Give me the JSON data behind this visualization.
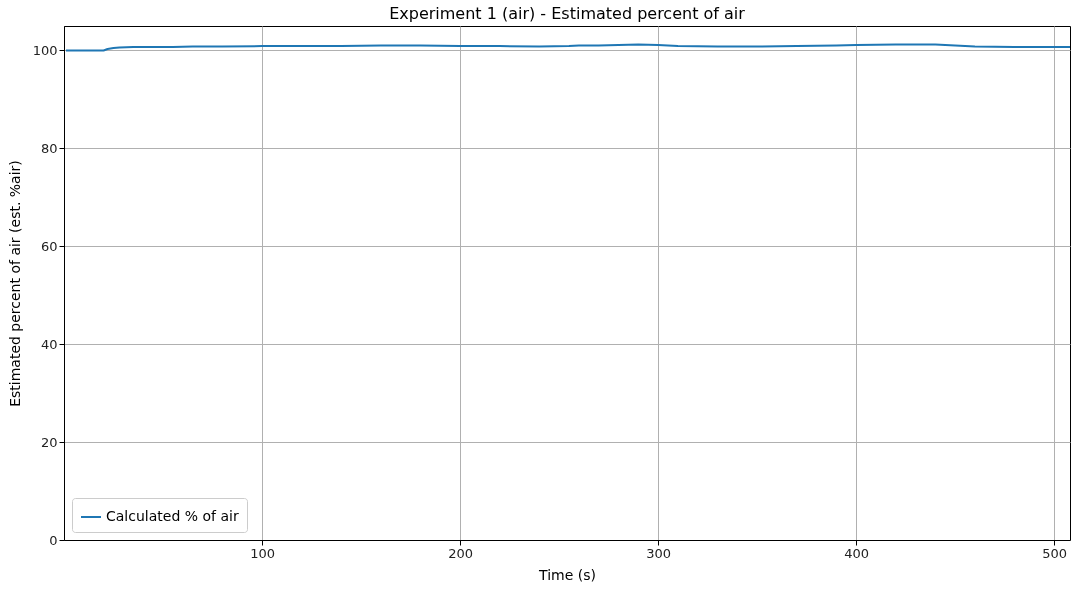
{
  "chart_data": {
    "type": "line",
    "title": "Experiment 1 (air) - Estimated percent of air",
    "xlabel": "Time (s)",
    "ylabel": "Estimated percent of air (est. %air)",
    "x": [
      1,
      5,
      10,
      15,
      20,
      22,
      25,
      28,
      35,
      45,
      55,
      65,
      80,
      100,
      120,
      140,
      160,
      180,
      200,
      220,
      240,
      255,
      260,
      270,
      280,
      290,
      300,
      310,
      330,
      350,
      370,
      390,
      400,
      420,
      440,
      450,
      460,
      480,
      500,
      508
    ],
    "series": [
      {
        "name": "Calculated % of air",
        "color": "#1f77b4",
        "values": [
          100,
          100,
          100,
          100,
          100,
          100.3,
          100.5,
          100.6,
          100.7,
          100.7,
          100.7,
          100.8,
          100.8,
          100.9,
          100.9,
          100.9,
          101,
          101,
          100.9,
          100.9,
          100.8,
          100.9,
          101,
          101,
          101.1,
          101.2,
          101.1,
          100.9,
          100.8,
          100.8,
          100.9,
          101,
          101.1,
          101.2,
          101.2,
          101,
          100.8,
          100.7,
          100.7,
          100.7
        ]
      }
    ],
    "xlim": [
      0,
      508
    ],
    "ylim": [
      0,
      105
    ],
    "xticks": [
      100,
      200,
      300,
      400,
      500
    ],
    "yticks": [
      0,
      20,
      40,
      60,
      80,
      100
    ],
    "grid": true,
    "legend": "bottom left",
    "line_style": "solid",
    "marker": "none"
  }
}
